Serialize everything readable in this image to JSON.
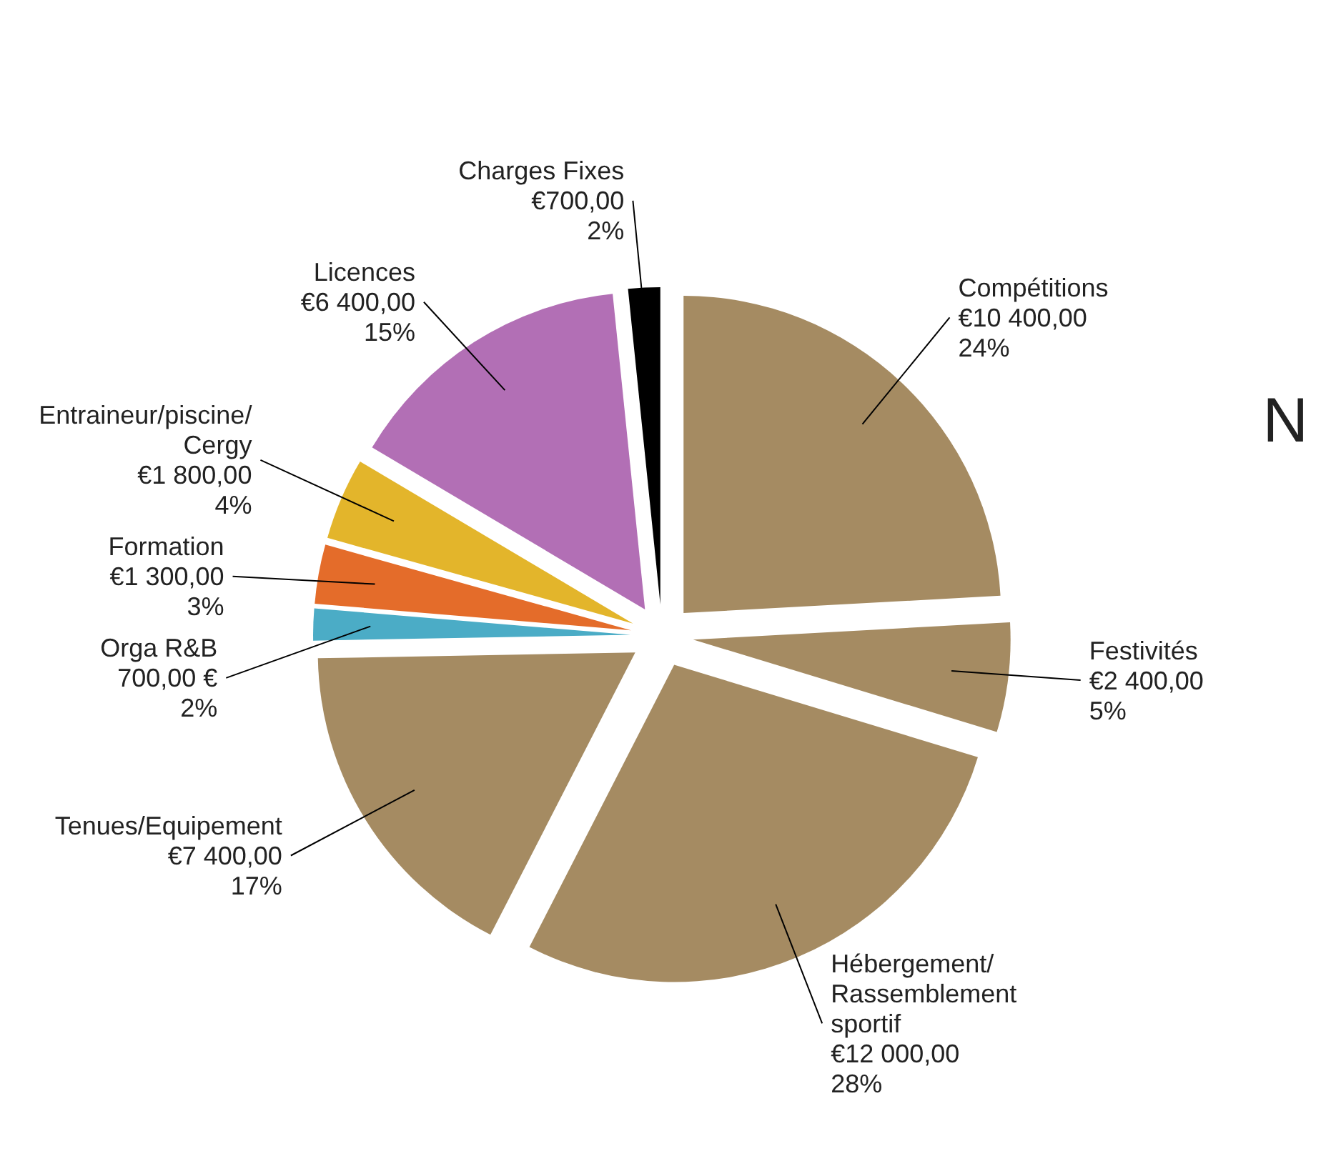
{
  "chart_data": {
    "type": "pie",
    "categories": [
      "Compétitions",
      "Festivités",
      "Hébergement/Rassemblement sportif",
      "Tenues/Equipement",
      "Orga R&B",
      "Formation",
      "Entraineur/piscine/Cergy",
      "Licences",
      "Charges Fixes"
    ],
    "values": [
      10400,
      2400,
      12000,
      7400,
      700,
      1300,
      1800,
      6400,
      700
    ],
    "colors": [
      "#a58b62",
      "#a58b62",
      "#a58b62",
      "#a58b62",
      "#4bacc6",
      "#e46c2a",
      "#e3b52b",
      "#b26fb5",
      "#000000"
    ],
    "value_labels": [
      "€10 400,00\n24%",
      "€2 400,00\n5%",
      "€12 000,00\n28%",
      "€7 400,00\n17%",
      "700,00 €\n2%",
      "€1 300,00\n3%",
      "€1 800,00\n4%",
      "€6 400,00\n15%",
      "€700,00\n2%"
    ],
    "annotations": [
      "N"
    ],
    "legend": false
  }
}
